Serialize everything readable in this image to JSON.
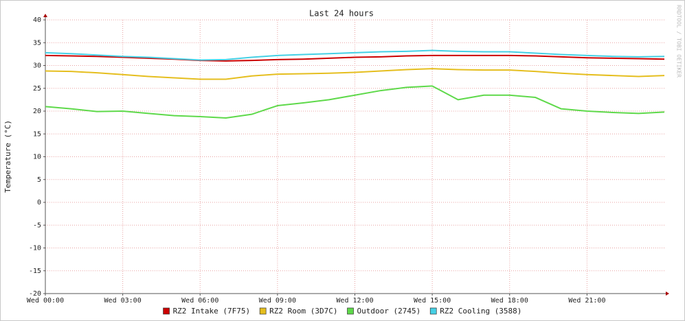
{
  "chart_data": {
    "type": "line",
    "title": "Last 24 hours",
    "y_label": "Temperature (°C)",
    "watermark": "RRDTOOL / TOBI OETIKER",
    "x": [
      0,
      1,
      2,
      3,
      4,
      5,
      6,
      7,
      8,
      9,
      10,
      11,
      12,
      13,
      14,
      15,
      16,
      17,
      18,
      19,
      20,
      21,
      22,
      23,
      24
    ],
    "xlim": [
      0,
      24
    ],
    "xticks": [
      {
        "value": 0,
        "label": "Wed 00:00"
      },
      {
        "value": 3,
        "label": "Wed 03:00"
      },
      {
        "value": 6,
        "label": "Wed 06:00"
      },
      {
        "value": 9,
        "label": "Wed 09:00"
      },
      {
        "value": 12,
        "label": "Wed 12:00"
      },
      {
        "value": 15,
        "label": "Wed 15:00"
      },
      {
        "value": 18,
        "label": "Wed 18:00"
      },
      {
        "value": 21,
        "label": "Wed 21:00"
      }
    ],
    "ylim": [
      -20,
      40
    ],
    "yticks": [
      -20,
      -15,
      -10,
      -5,
      0,
      5,
      10,
      15,
      20,
      25,
      30,
      35,
      40
    ],
    "grid": true,
    "legend": "bottom",
    "series": [
      {
        "name": "RZ2 Intake (7F75)",
        "color": "#cc0000",
        "values": [
          32.2,
          32.1,
          32.0,
          31.8,
          31.6,
          31.4,
          31.1,
          31.0,
          31.1,
          31.3,
          31.4,
          31.6,
          31.8,
          31.9,
          32.1,
          32.2,
          32.2,
          32.2,
          32.2,
          32.1,
          31.9,
          31.7,
          31.6,
          31.5,
          31.4
        ]
      },
      {
        "name": "RZ2 Room (3D7C)",
        "color": "#e5be1e",
        "values": [
          28.8,
          28.7,
          28.4,
          28.0,
          27.6,
          27.3,
          27.0,
          27.0,
          27.7,
          28.1,
          28.2,
          28.3,
          28.5,
          28.8,
          29.1,
          29.3,
          29.1,
          29.0,
          29.0,
          28.7,
          28.3,
          28.0,
          27.8,
          27.6,
          27.8
        ]
      },
      {
        "name": "Outdoor (2745)",
        "color": "#5ed94a",
        "values": [
          21.0,
          20.5,
          19.9,
          20.0,
          19.5,
          19.0,
          18.8,
          18.5,
          19.3,
          21.2,
          21.8,
          22.5,
          23.5,
          24.5,
          25.2,
          25.5,
          22.5,
          23.5,
          23.5,
          23.0,
          20.5,
          20.0,
          19.7,
          19.5,
          19.8
        ]
      },
      {
        "name": "RZ2 Cooling (3588)",
        "color": "#45d0e5",
        "values": [
          32.8,
          32.6,
          32.3,
          32.0,
          31.8,
          31.5,
          31.2,
          31.3,
          31.8,
          32.2,
          32.4,
          32.6,
          32.8,
          33.0,
          33.1,
          33.3,
          33.1,
          33.0,
          33.0,
          32.7,
          32.4,
          32.2,
          32.0,
          31.9,
          32.0
        ]
      }
    ]
  }
}
